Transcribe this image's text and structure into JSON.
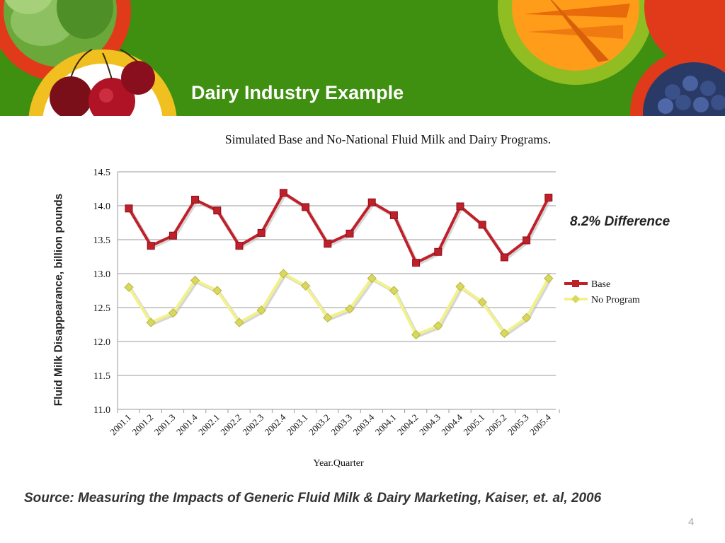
{
  "slide": {
    "title": "Dairy Industry Example",
    "source": "Source:  Measuring the Impacts of Generic Fluid Milk & Dairy Marketing, Kaiser, et. al, 2006",
    "page_number": "4",
    "annotation": "8.2% Difference"
  },
  "header_art": [
    "lettuce",
    "cherries",
    "carrots",
    "blueberries"
  ],
  "colors": {
    "header_green": "#3f8f10",
    "ring_red": "#e03a1a",
    "ring_yellow": "#f0c020",
    "base_series": "#c0202a",
    "no_program_series": "#f2f28a",
    "no_program_marker": "#d8d860"
  },
  "chart_data": {
    "type": "line",
    "title": "Simulated Base and No-National Fluid Milk and Dairy Programs.",
    "xlabel": "Year.Quarter",
    "ylabel": "Fluid Milk Disappearance, billion pounds",
    "ylim": [
      11.0,
      14.5
    ],
    "yticks": [
      "11.0",
      "11.5",
      "12.0",
      "12.5",
      "13.0",
      "13.5",
      "14.0",
      "14.5"
    ],
    "grid": true,
    "legend_position": "right",
    "categories": [
      "2001.1",
      "2001.2",
      "2001.3",
      "2001.4",
      "2002.1",
      "2002.2",
      "2002.3",
      "2002.4",
      "2003.1",
      "2003.2",
      "2003.3",
      "2003.4",
      "2004.1",
      "2004.2",
      "2004.3",
      "2004.4",
      "2005.1",
      "2005.2",
      "2005.3",
      "2005.4"
    ],
    "series": [
      {
        "name": "Base",
        "values": [
          13.96,
          13.41,
          13.56,
          14.09,
          13.93,
          13.41,
          13.6,
          14.19,
          13.98,
          13.44,
          13.59,
          14.05,
          13.86,
          13.16,
          13.32,
          13.99,
          13.72,
          13.24,
          13.49,
          14.12
        ]
      },
      {
        "name": "No Program",
        "values": [
          12.8,
          12.28,
          12.42,
          12.9,
          12.75,
          12.28,
          12.46,
          13.0,
          12.82,
          12.35,
          12.48,
          12.93,
          12.75,
          12.1,
          12.23,
          12.81,
          12.58,
          12.12,
          12.35,
          12.93
        ]
      }
    ]
  }
}
